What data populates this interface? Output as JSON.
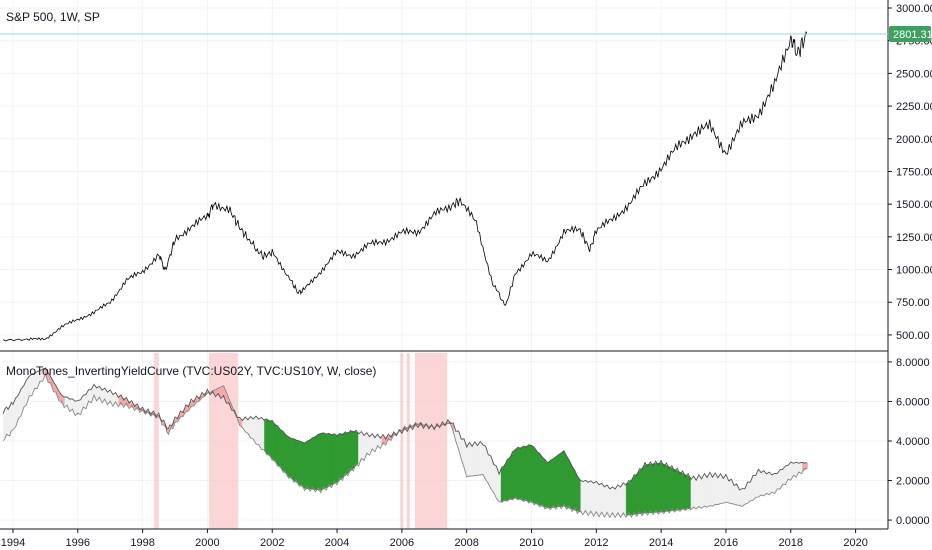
{
  "colors": {
    "price_line": "#000000",
    "current_price_line": "#9fd6d6",
    "current_price_badge": "#3da060",
    "yield_2y": "#888888",
    "yield_10y": "#555555",
    "spread_fill_inverted": "#f4a9a9",
    "spread_fill_normal": "#f0f0f0",
    "steep_fill": "#2e9930",
    "inversion_highlight": "#fbc7c9",
    "inverted_line": "#8b1a1a"
  },
  "chart_data": [
    {
      "type": "line",
      "title": "S&P 500, 1W, SP",
      "current_value_label": "2801.31",
      "current_value": 2801.31,
      "xlim": [
        1993.6,
        2021.0
      ],
      "ylim": [
        400,
        3000
      ],
      "y_ticks": [
        "3000.00",
        "2750.00",
        "2500.00",
        "2250.00",
        "2000.00",
        "1750.00",
        "1500.00",
        "1250.00",
        "1000.00",
        "750.00",
        "500.00"
      ],
      "y_tick_values": [
        3000,
        2750,
        2500,
        2250,
        2000,
        1750,
        1500,
        1250,
        1000,
        750,
        500
      ],
      "series": [
        {
          "x": [
            1993.7,
            1994.5,
            1995.0,
            1995.5,
            1996.0,
            1996.5,
            1997.0,
            1997.5,
            1998.0,
            1998.5,
            1998.7,
            1999.0,
            1999.5,
            2000.0,
            2000.2,
            2000.7,
            2001.0,
            2001.3,
            2001.7,
            2002.0,
            2002.5,
            2002.8,
            2003.0,
            2003.5,
            2004.0,
            2004.5,
            2005.0,
            2005.5,
            2006.0,
            2006.5,
            2007.0,
            2007.5,
            2007.8,
            2008.3,
            2008.8,
            2009.2,
            2009.5,
            2010.0,
            2010.5,
            2011.0,
            2011.5,
            2011.8,
            2012.0,
            2012.5,
            2013.0,
            2013.5,
            2014.0,
            2014.5,
            2015.0,
            2015.5,
            2016.0,
            2016.5,
            2017.0,
            2017.5,
            2018.0,
            2018.2,
            2018.5
          ],
          "y": [
            460,
            465,
            470,
            560,
            620,
            670,
            750,
            920,
            980,
            1120,
            990,
            1230,
            1330,
            1400,
            1510,
            1450,
            1320,
            1220,
            1100,
            1130,
            950,
            820,
            850,
            990,
            1130,
            1110,
            1190,
            1220,
            1280,
            1290,
            1420,
            1480,
            1530,
            1350,
            900,
            720,
            970,
            1120,
            1060,
            1290,
            1300,
            1150,
            1300,
            1380,
            1500,
            1650,
            1780,
            1930,
            2050,
            2090,
            1900,
            2100,
            2200,
            2400,
            2780,
            2650,
            2801
          ]
        }
      ]
    },
    {
      "type": "area",
      "title": "MonoTones_InvertingYieldCurve (TVC:US02Y, TVC:US10Y, W, close)",
      "xlim": [
        1993.6,
        2021.0
      ],
      "ylim": [
        -0.3,
        8.3
      ],
      "y_ticks": [
        "8.0000",
        "6.0000",
        "4.0000",
        "2.0000",
        "0.0000"
      ],
      "y_tick_values": [
        8,
        6,
        4,
        2,
        0
      ],
      "x_ticks": [
        "1994",
        "1996",
        "1998",
        "2000",
        "2002",
        "2004",
        "2006",
        "2008",
        "2010",
        "2012",
        "2014",
        "2016",
        "2018",
        "2020"
      ],
      "x_tick_values": [
        1994,
        1996,
        1998,
        2000,
        2002,
        2004,
        2006,
        2008,
        2010,
        2012,
        2014,
        2016,
        2018,
        2020
      ],
      "inversion_periods": [
        [
          1998.35,
          1998.5
        ],
        [
          2000.05,
          2000.95
        ],
        [
          2005.95,
          2006.05
        ],
        [
          2006.15,
          2006.25
        ],
        [
          2006.4,
          2007.4
        ]
      ],
      "series": [
        {
          "name": "US02Y",
          "x": [
            1993.7,
            1994.0,
            1994.5,
            1995.0,
            1995.5,
            1996.0,
            1996.5,
            1997.0,
            1997.5,
            1998.0,
            1998.5,
            1998.8,
            1999.0,
            1999.5,
            2000.0,
            2000.5,
            2001.0,
            2001.5,
            2002.0,
            2002.5,
            2003.0,
            2003.5,
            2004.0,
            2004.5,
            2005.0,
            2005.5,
            2006.0,
            2006.5,
            2007.0,
            2007.5,
            2008.0,
            2008.5,
            2009.0,
            2009.5,
            2010.0,
            2010.5,
            2011.0,
            2011.5,
            2012.0,
            2012.5,
            2013.0,
            2013.5,
            2014.0,
            2014.5,
            2015.0,
            2015.5,
            2016.0,
            2016.5,
            2017.0,
            2017.5,
            2018.0,
            2018.5
          ],
          "y": [
            4.1,
            4.5,
            6.2,
            7.3,
            5.9,
            5.3,
            6.2,
            5.9,
            5.8,
            5.5,
            5.2,
            4.4,
            4.9,
            5.7,
            6.4,
            6.8,
            4.8,
            3.9,
            3.1,
            2.2,
            1.6,
            1.5,
            1.9,
            2.6,
            3.4,
            3.9,
            4.6,
            4.9,
            4.7,
            4.9,
            2.2,
            2.3,
            0.9,
            1.1,
            0.9,
            0.6,
            0.7,
            0.4,
            0.3,
            0.25,
            0.25,
            0.35,
            0.4,
            0.5,
            0.6,
            0.7,
            0.9,
            0.7,
            1.2,
            1.4,
            2.1,
            2.6
          ]
        },
        {
          "name": "US10Y",
          "x": [
            1993.7,
            1994.0,
            1994.5,
            1995.0,
            1995.5,
            1996.0,
            1996.5,
            1997.0,
            1997.5,
            1998.0,
            1998.5,
            1998.8,
            1999.0,
            1999.5,
            2000.0,
            2000.5,
            2001.0,
            2001.5,
            2002.0,
            2002.5,
            2003.0,
            2003.5,
            2004.0,
            2004.5,
            2005.0,
            2005.5,
            2006.0,
            2006.5,
            2007.0,
            2007.5,
            2008.0,
            2008.5,
            2009.0,
            2009.5,
            2010.0,
            2010.5,
            2011.0,
            2011.5,
            2012.0,
            2012.5,
            2013.0,
            2013.5,
            2014.0,
            2014.5,
            2015.0,
            2015.5,
            2016.0,
            2016.5,
            2017.0,
            2017.5,
            2018.0,
            2018.5
          ],
          "y": [
            5.5,
            5.9,
            7.3,
            7.7,
            6.3,
            6.0,
            6.8,
            6.5,
            6.1,
            5.6,
            5.3,
            4.6,
            5.1,
            6.0,
            6.5,
            6.2,
            5.1,
            5.2,
            5.0,
            4.2,
            3.9,
            4.4,
            4.3,
            4.5,
            4.3,
            4.2,
            4.5,
            4.8,
            4.7,
            5.0,
            3.8,
            3.9,
            2.4,
            3.6,
            3.8,
            2.9,
            3.5,
            2.0,
            1.9,
            1.6,
            1.9,
            2.8,
            2.9,
            2.5,
            2.1,
            2.3,
            2.2,
            1.5,
            2.5,
            2.3,
            2.9,
            2.9
          ]
        }
      ]
    }
  ]
}
